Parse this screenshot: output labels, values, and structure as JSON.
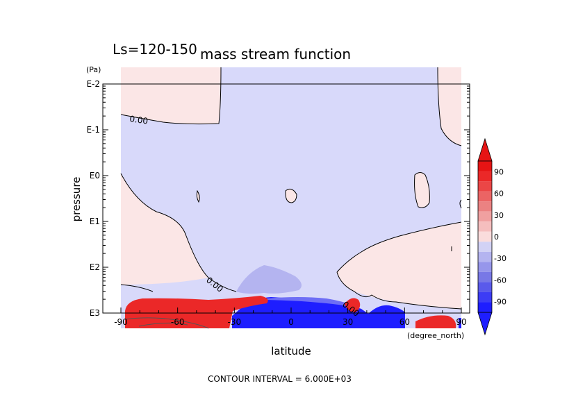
{
  "chart_data": {
    "type": "heatmap",
    "title_left": "Ls=120-150",
    "title": "mass stream function",
    "xlabel": "latitude",
    "ylabel": "pressure",
    "y_unit": "(Pa)",
    "x_unit": "(degree_north)",
    "xlim": [
      -90,
      90
    ],
    "x_ticks": [
      "-90",
      "-60",
      "-30",
      "0",
      "30",
      "60",
      "90"
    ],
    "ylim": [
      "E-2",
      "E3"
    ],
    "y_scale": "log",
    "y_ticks": [
      "E-2",
      "E-1",
      "E0",
      "E1",
      "E2",
      "E3"
    ],
    "contour_labels": [
      "0.00",
      "0.00",
      "0.00"
    ],
    "colorbar": {
      "levels": [
        "-90",
        "-60",
        "-30",
        "0",
        "30",
        "60",
        "90"
      ],
      "colors": [
        "#1e1eff",
        "#3c3cf5",
        "#5a5aeb",
        "#7878e6",
        "#9696eb",
        "#b4b4f0",
        "#d2d2f5",
        "#fadcdc",
        "#f5bebe",
        "#f0a0a0",
        "#eb8282",
        "#eb6464",
        "#eb4646",
        "#eb2828",
        "#e61414"
      ],
      "extend": "both"
    },
    "footer": "CONTOUR INTERVAL = 6.000E+03"
  }
}
